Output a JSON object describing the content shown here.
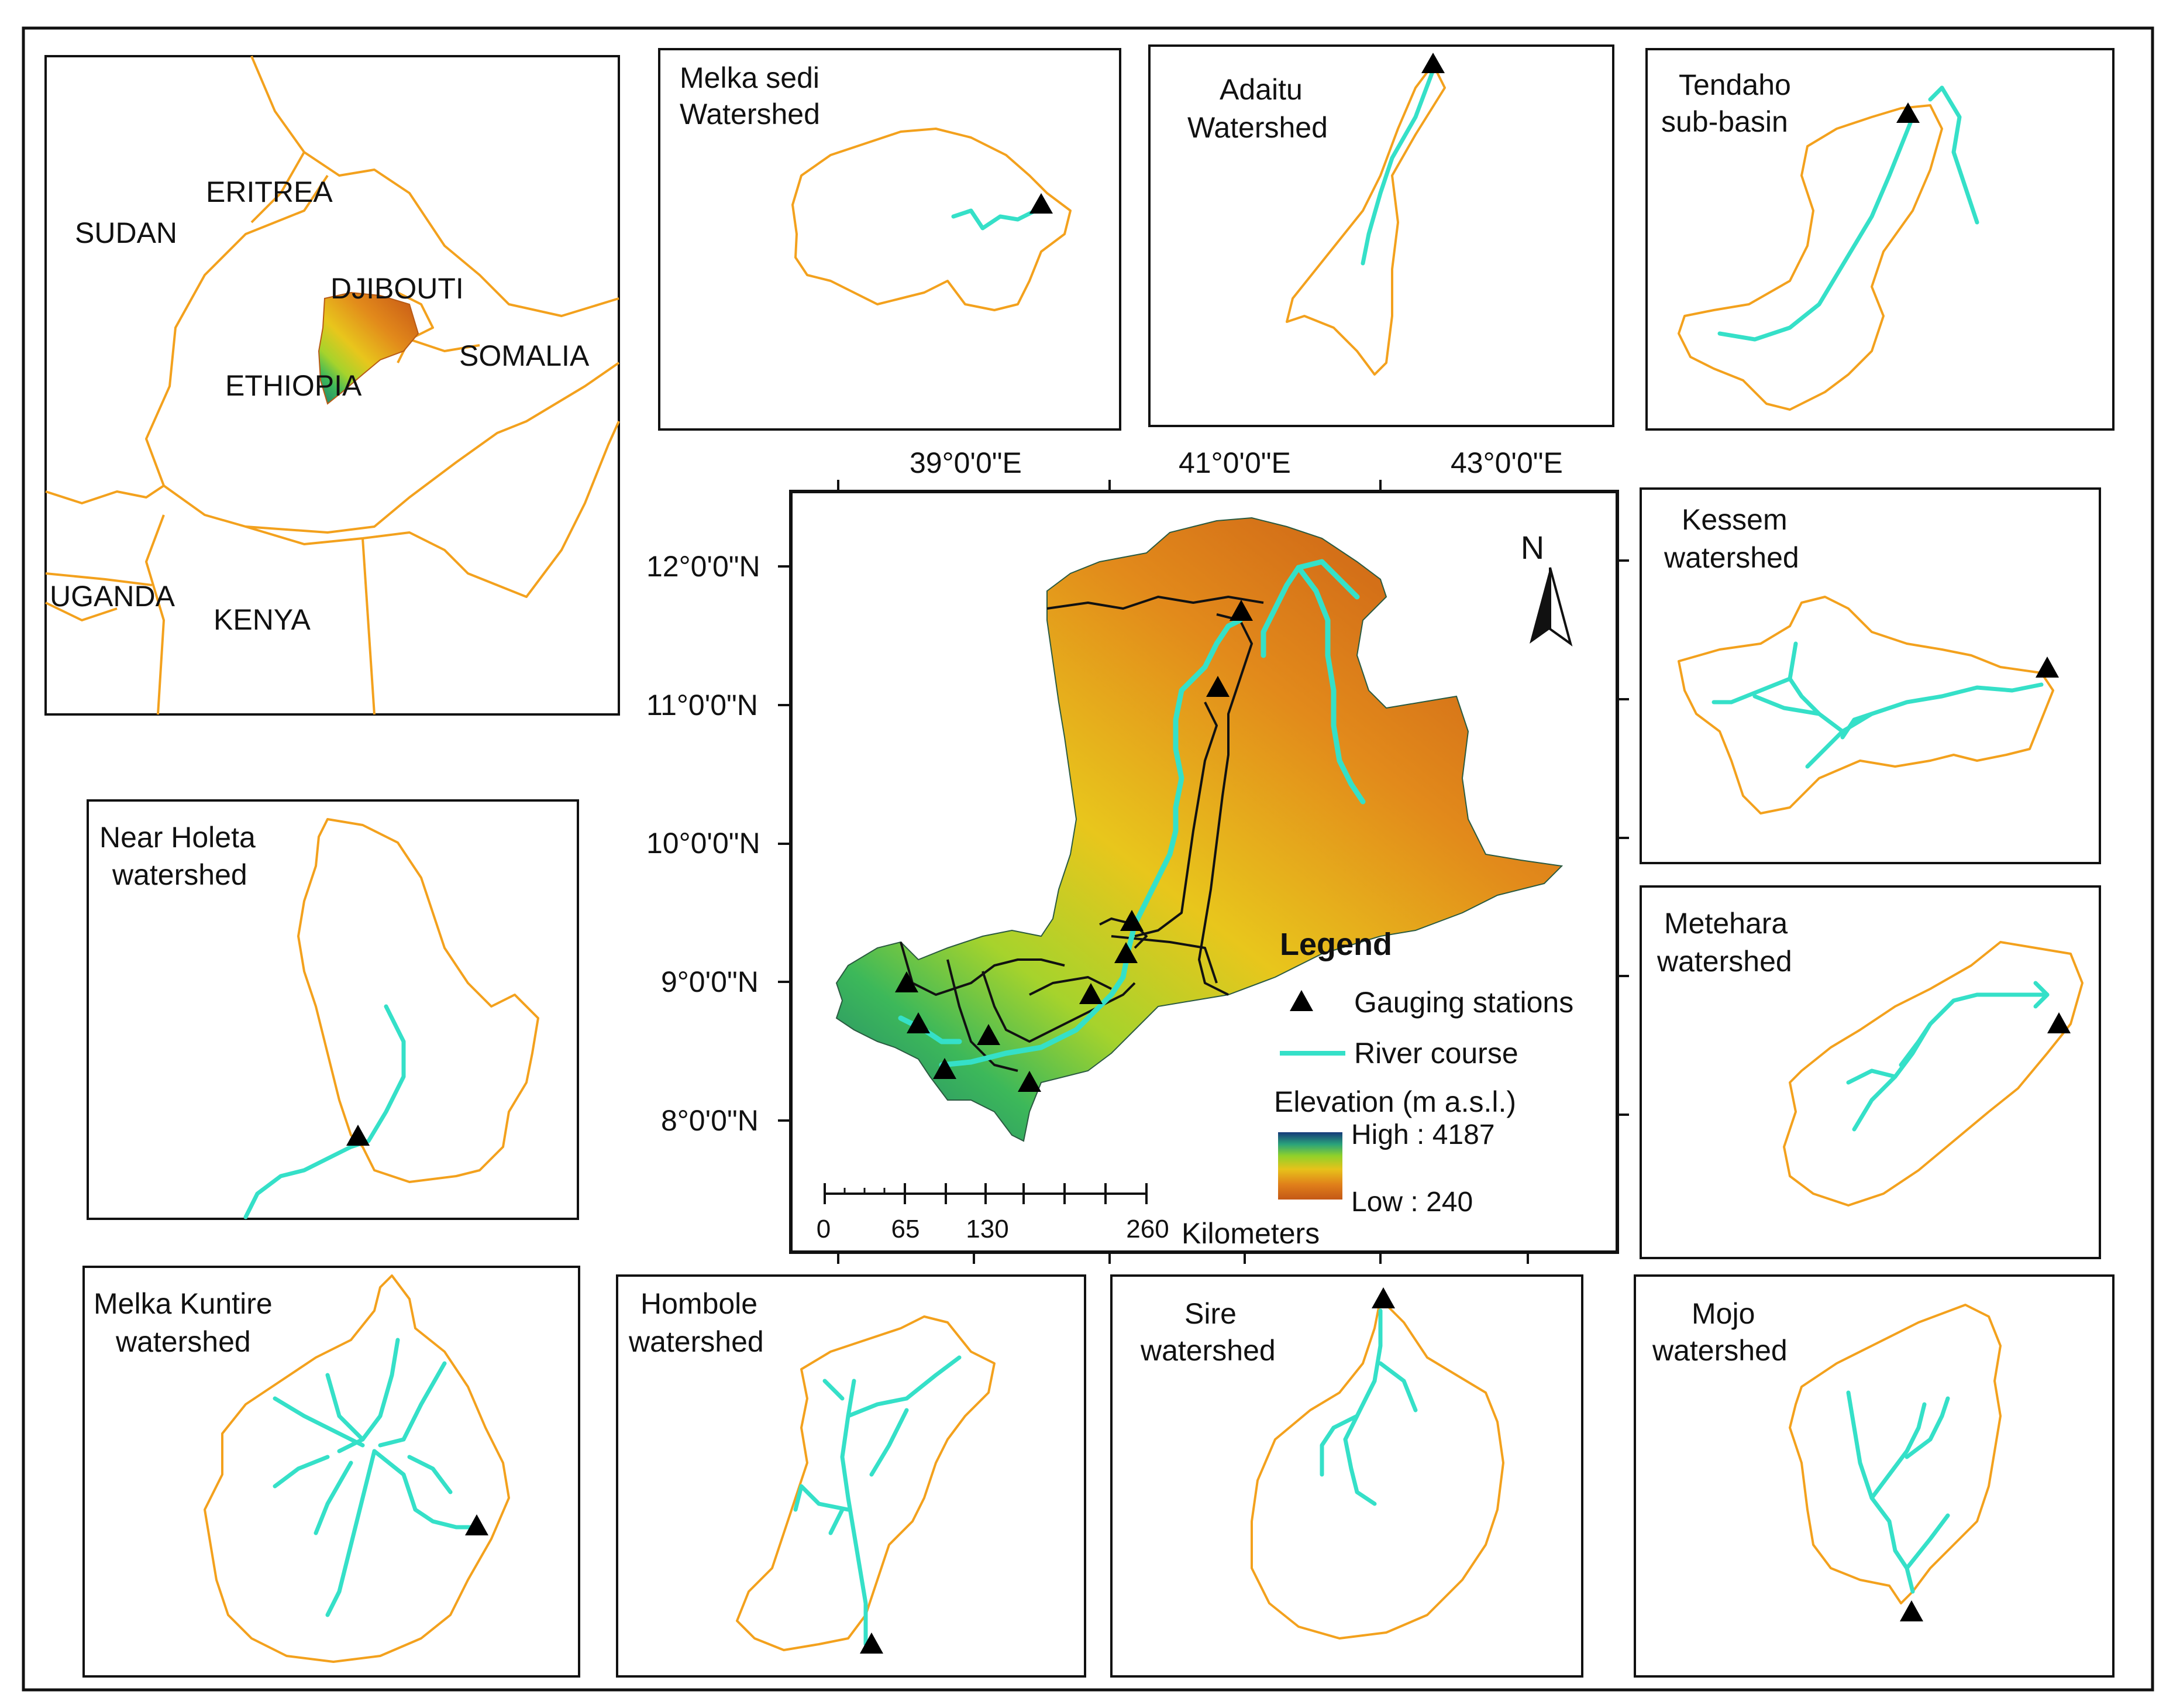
{
  "inset": {
    "countries": [
      "SUDAN",
      "ERITREA",
      "DJIBOUTI",
      "SOMALIA",
      "ETHIOPIA",
      "UGANDA",
      "KENYA"
    ]
  },
  "watersheds": {
    "melka_sedi": [
      "Melka sedi",
      "Watershed"
    ],
    "adaitu": [
      "Adaitu",
      "Watershed"
    ],
    "tendaho": [
      "Tendaho",
      "sub-basin"
    ],
    "kessem": [
      "Kessem",
      "watershed"
    ],
    "metehara": [
      "Metehara",
      "watershed"
    ],
    "mojo": [
      "Mojo",
      "watershed"
    ],
    "sire": [
      "Sire",
      "watershed"
    ],
    "hombole": [
      "Hombole",
      "watershed"
    ],
    "melka_kuntire": [
      "Melka Kuntire",
      "watershed"
    ],
    "near_holeta": [
      "Near Holeta",
      "watershed"
    ]
  },
  "graticule": {
    "longitudes": [
      "39°0'0\"E",
      "41°0'0\"E",
      "43°0'0\"E"
    ],
    "latitudes": [
      "12°0'0\"N",
      "11°0'0\"N",
      "10°0'0\"N",
      "9°0'0\"N",
      "8°0'0\"N"
    ]
  },
  "north_arrow": "N",
  "legend": {
    "title": "Legend",
    "gauging": "Gauging stations",
    "river": "River course",
    "elevation_title": "Elevation (m a.s.l.)",
    "high": "High : 4187",
    "low": "Low : 240"
  },
  "scalebar": {
    "labels": [
      "0",
      "65",
      "130",
      "260"
    ],
    "unit": "Kilometers"
  },
  "colors": {
    "boundary": "#f3a11d",
    "river": "#35e0c8",
    "elev_high": "#163a7a",
    "elev_mid": "#e7c21a",
    "elev_low": "#c45816"
  }
}
